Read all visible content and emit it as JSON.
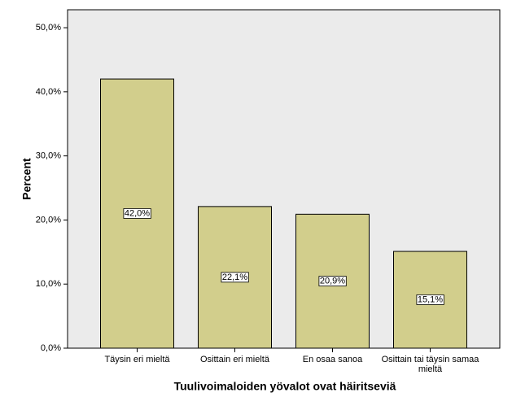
{
  "chart_data": {
    "type": "bar",
    "categories": [
      "Täysin eri mieltä",
      "Osittain eri mieltä",
      "En osaa sanoa",
      "Osittain tai täysin samaa mieltä"
    ],
    "values": [
      42.0,
      22.1,
      20.9,
      15.1
    ],
    "value_labels": [
      "42,0%",
      "22,1%",
      "20,9%",
      "15,1%"
    ],
    "color": "#d2ce8c",
    "background": "#ebebeb",
    "x_label": "Tuulivoimaloiden yövalot ovat häiritseviä",
    "y_label": "Percent",
    "ylim": [
      0,
      52.8
    ],
    "yticks": [
      {
        "value": 0,
        "label": "0,0%"
      },
      {
        "value": 10,
        "label": "10,0%"
      },
      {
        "value": 20,
        "label": "20,0%"
      },
      {
        "value": 30,
        "label": "30,0%"
      },
      {
        "value": 40,
        "label": "40,0%"
      },
      {
        "value": 50,
        "label": "50,0%"
      }
    ]
  }
}
